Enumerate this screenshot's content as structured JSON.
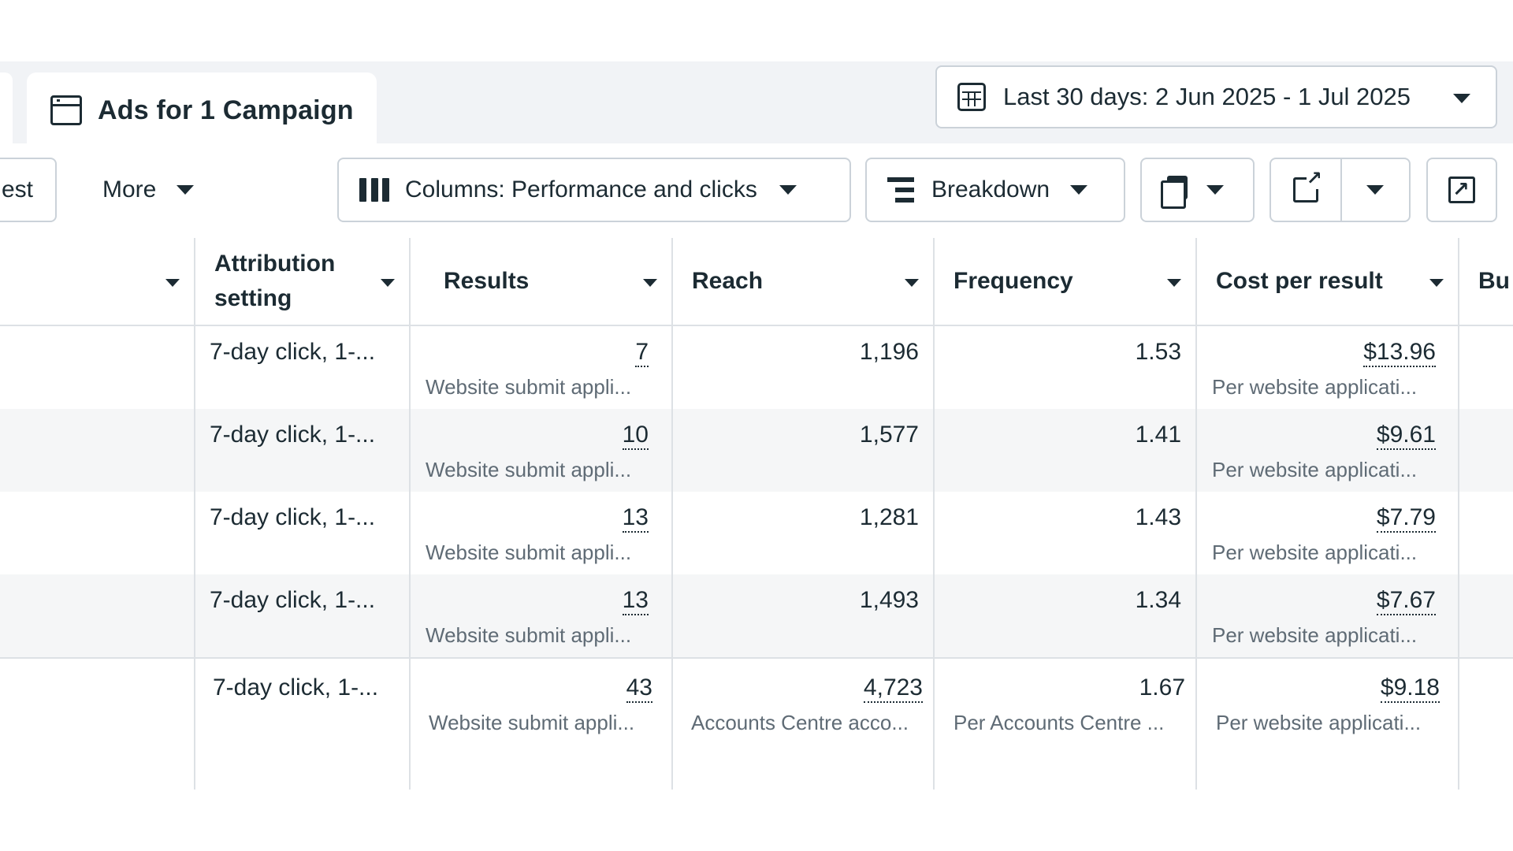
{
  "tab": {
    "title": "Ads for 1 Campaign",
    "icon": "window-icon"
  },
  "date_range": {
    "label": "Last 30 days: 2 Jun 2025 - 1 Jul 2025",
    "icon": "calendar-grid-icon"
  },
  "toolbar": {
    "test_label": "est",
    "more_label": "More",
    "columns_label": "Columns: Performance and clicks",
    "breakdown_label": "Breakdown"
  },
  "columns": [
    {
      "key": "attribution",
      "label": "Attribution setting"
    },
    {
      "key": "results",
      "label": "Results"
    },
    {
      "key": "reach",
      "label": "Reach"
    },
    {
      "key": "frequency",
      "label": "Frequency"
    },
    {
      "key": "cost_per_result",
      "label": "Cost per result"
    },
    {
      "key": "budget",
      "label": "Bu"
    }
  ],
  "rows": [
    {
      "attribution": "7-day click, 1-...",
      "results": "7",
      "results_sub": "Website submit appli...",
      "reach": "1,196",
      "frequency": "1.53",
      "cost": "$13.96",
      "cost_sub": "Per website applicati..."
    },
    {
      "attribution": "7-day click, 1-...",
      "results": "10",
      "results_sub": "Website submit appli...",
      "reach": "1,577",
      "frequency": "1.41",
      "cost": "$9.61",
      "cost_sub": "Per website applicati..."
    },
    {
      "attribution": "7-day click, 1-...",
      "results": "13",
      "results_sub": "Website submit appli...",
      "reach": "1,281",
      "frequency": "1.43",
      "cost": "$7.79",
      "cost_sub": "Per website applicati..."
    },
    {
      "attribution": "7-day click, 1-...",
      "results": "13",
      "results_sub": "Website submit appli...",
      "reach": "1,493",
      "frequency": "1.34",
      "cost": "$7.67",
      "cost_sub": "Per website applicati..."
    }
  ],
  "totals": {
    "attribution": "7-day click, 1-...",
    "results": "43",
    "results_sub": "Website submit appli...",
    "reach": "4,723",
    "reach_sub": "Accounts Centre acco...",
    "frequency": "1.67",
    "frequency_sub": "Per Accounts Centre ...",
    "cost": "$9.18",
    "cost_sub": "Per website applicati..."
  }
}
